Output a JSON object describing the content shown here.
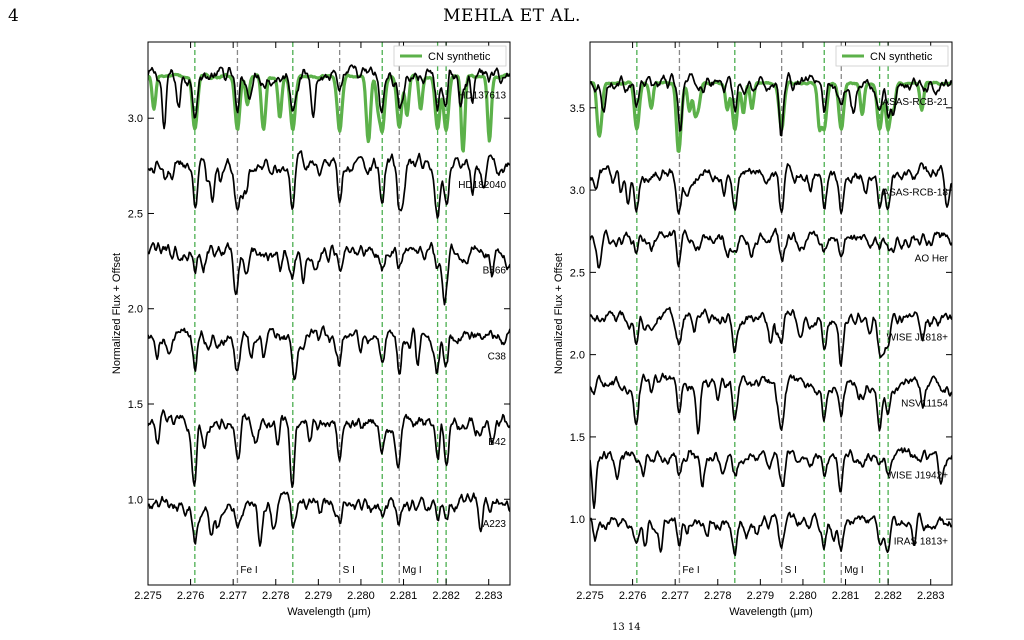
{
  "page": {
    "number": "4",
    "running_head": "MEHLA ET AL.",
    "caption_fragment": "13 14"
  },
  "chart_data": [
    {
      "type": "line",
      "xlabel": "Wavelength (μm)",
      "ylabel": "Normalized Flux + Offset",
      "xlim": [
        2.275,
        2.2835
      ],
      "ylim": [
        0.55,
        3.4
      ],
      "xticks": [
        "2.275",
        "2.276",
        "2.277",
        "2.278",
        "2.279",
        "2.280",
        "2.281",
        "2.282",
        "2.283"
      ],
      "yticks": [
        "1.0",
        "1.5",
        "2.0",
        "2.5",
        "3.0"
      ],
      "legend": {
        "position": "top-right",
        "label": "CN synthetic",
        "color": "#5cb14a"
      },
      "grid": false,
      "line_markers": [
        {
          "x": 2.2761,
          "color": "#4caf50",
          "label": ""
        },
        {
          "x": 2.2771,
          "color": "#888888",
          "label": "Fe I"
        },
        {
          "x": 2.2784,
          "color": "#4caf50",
          "label": ""
        },
        {
          "x": 2.2795,
          "color": "#888888",
          "label": "S I"
        },
        {
          "x": 2.2805,
          "color": "#4caf50",
          "label": ""
        },
        {
          "x": 2.2809,
          "color": "#888888",
          "label": "Mg I"
        },
        {
          "x": 2.2818,
          "color": "#4caf50",
          "label": ""
        },
        {
          "x": 2.282,
          "color": "#4caf50",
          "label": ""
        }
      ],
      "series": [
        {
          "name": "HD137613",
          "offset": 3.22
        },
        {
          "name": "HD182040",
          "offset": 2.75
        },
        {
          "name": "B566",
          "offset": 2.3
        },
        {
          "name": "C38",
          "offset": 1.85
        },
        {
          "name": "B42",
          "offset": 1.4
        },
        {
          "name": "A223",
          "offset": 0.97
        }
      ],
      "synthetic_offset": 3.22
    },
    {
      "type": "line",
      "xlabel": "Wavelength (μm)",
      "ylabel": "Normalized Flux + Offset",
      "xlim": [
        2.275,
        2.2835
      ],
      "ylim": [
        0.6,
        3.9
      ],
      "xticks": [
        "2.275",
        "2.276",
        "2.277",
        "2.278",
        "2.279",
        "2.280",
        "2.281",
        "2.282",
        "2.283"
      ],
      "yticks": [
        "1.0",
        "1.5",
        "2.0",
        "2.5",
        "3.0",
        "3.5"
      ],
      "legend": {
        "position": "top-right",
        "label": "CN synthetic",
        "color": "#5cb14a"
      },
      "grid": false,
      "line_markers": [
        {
          "x": 2.2761,
          "color": "#4caf50",
          "label": ""
        },
        {
          "x": 2.2771,
          "color": "#888888",
          "label": "Fe I"
        },
        {
          "x": 2.2784,
          "color": "#4caf50",
          "label": ""
        },
        {
          "x": 2.2795,
          "color": "#888888",
          "label": "S I"
        },
        {
          "x": 2.2805,
          "color": "#4caf50",
          "label": ""
        },
        {
          "x": 2.2809,
          "color": "#888888",
          "label": "Mg I"
        },
        {
          "x": 2.2818,
          "color": "#4caf50",
          "label": ""
        },
        {
          "x": 2.282,
          "color": "#4caf50",
          "label": ""
        }
      ],
      "series": [
        {
          "name": "ASAS-RCB-21",
          "offset": 3.65
        },
        {
          "name": "ASAS-RCB-18",
          "offset": 3.1
        },
        {
          "name": "AO Her",
          "offset": 2.7
        },
        {
          "name": "WISE J1818+",
          "offset": 2.22
        },
        {
          "name": "NSV11154",
          "offset": 1.82
        },
        {
          "name": "WISE J1942+",
          "offset": 1.38
        },
        {
          "name": "IRAS 1813+",
          "offset": 0.98
        }
      ],
      "synthetic_offset": 3.65
    }
  ]
}
